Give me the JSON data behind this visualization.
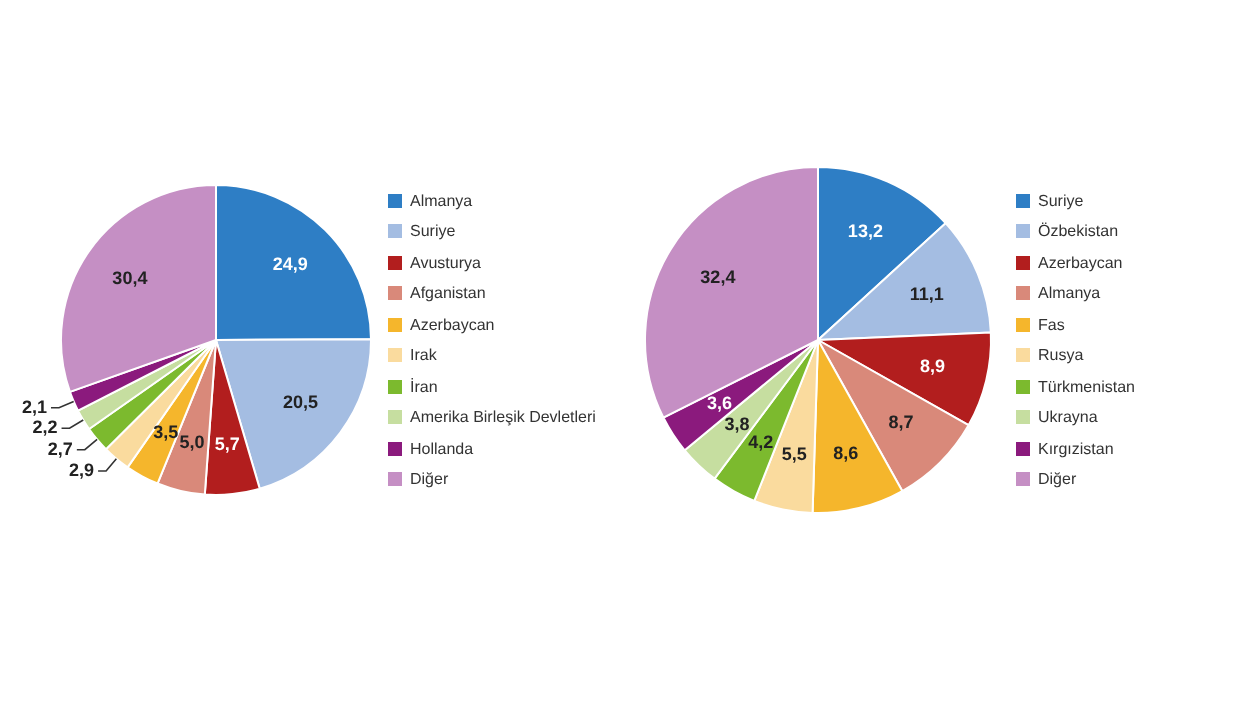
{
  "chart_data": [
    {
      "type": "pie",
      "categories": [
        "Almanya",
        "Suriye",
        "Avusturya",
        "Afganistan",
        "Azerbaycan",
        "Irak",
        "İran",
        "Amerika Birleşik Devletleri",
        "Hollanda",
        "Diğer"
      ],
      "values": [
        24.9,
        20.5,
        5.7,
        5.0,
        3.5,
        2.9,
        2.7,
        2.2,
        2.1,
        30.4
      ],
      "value_labels": [
        "24,9",
        "20,5",
        "5,7",
        "5,0",
        "3,5",
        "2,9",
        "2,7",
        "2,2",
        "2,1",
        "30,4"
      ],
      "colors": [
        "#2e7ec5",
        "#a4bde2",
        "#b21e1e",
        "#d9897a",
        "#f5b62c",
        "#fadb9e",
        "#7cba2e",
        "#c6dea0",
        "#8b1a7d",
        "#c58fc4"
      ],
      "legend": "right"
    },
    {
      "type": "pie",
      "categories": [
        "Suriye",
        "Özbekistan",
        "Azerbaycan",
        "Almanya",
        "Fas",
        "Rusya",
        "Türkmenistan",
        "Ukrayna",
        "Kırgızistan",
        "Diğer"
      ],
      "values": [
        13.2,
        11.1,
        8.9,
        8.7,
        8.6,
        5.5,
        4.2,
        3.8,
        3.6,
        32.4
      ],
      "value_labels": [
        "13,2",
        "11,1",
        "8,9",
        "8,7",
        "8,6",
        "5,5",
        "4,2",
        "3,8",
        "3,6",
        "32,4"
      ],
      "colors": [
        "#2e7ec5",
        "#a4bde2",
        "#b21e1e",
        "#d9897a",
        "#f5b62c",
        "#fadb9e",
        "#7cba2e",
        "#c6dea0",
        "#8b1a7d",
        "#c58fc4"
      ],
      "legend": "right"
    }
  ]
}
